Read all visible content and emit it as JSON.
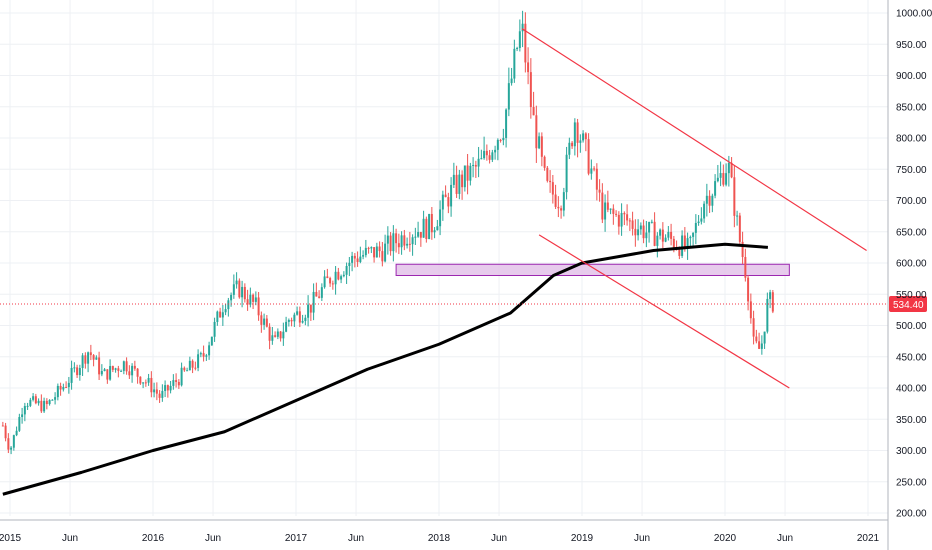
{
  "chart_data": {
    "type": "candlestick",
    "title": "",
    "xlabel": "",
    "ylabel": "",
    "ylim": [
      190,
      1010
    ],
    "y_ticks": [
      "200.00",
      "250.00",
      "300.00",
      "350.00",
      "400.00",
      "450.00",
      "500.00",
      "550.00",
      "600.00",
      "650.00",
      "700.00",
      "750.00",
      "800.00",
      "850.00",
      "900.00",
      "950.00",
      "1000.00"
    ],
    "x_ticks": [
      {
        "label": "2015",
        "x": 2015.0
      },
      {
        "label": "Jun",
        "x": 2015.42
      },
      {
        "label": "2016",
        "x": 2016.0
      },
      {
        "label": "Jun",
        "x": 2016.42
      },
      {
        "label": "2017",
        "x": 2017.0
      },
      {
        "label": "Jun",
        "x": 2017.42
      },
      {
        "label": "2018",
        "x": 2018.0
      },
      {
        "label": "Jun",
        "x": 2018.42
      },
      {
        "label": "2019",
        "x": 2019.0
      },
      {
        "label": "Jun",
        "x": 2019.42
      },
      {
        "label": "2020",
        "x": 2020.0
      },
      {
        "label": "Jun",
        "x": 2020.42
      },
      {
        "label": "2021",
        "x": 2021.0
      }
    ],
    "price_path": [
      [
        2014.95,
        340
      ],
      [
        2015.0,
        300
      ],
      [
        2015.1,
        380
      ],
      [
        2015.25,
        370
      ],
      [
        2015.4,
        410
      ],
      [
        2015.55,
        460
      ],
      [
        2015.65,
        420
      ],
      [
        2015.8,
        440
      ],
      [
        2016.0,
        400
      ],
      [
        2016.05,
        385
      ],
      [
        2016.2,
        420
      ],
      [
        2016.35,
        450
      ],
      [
        2016.5,
        540
      ],
      [
        2016.6,
        560
      ],
      [
        2016.72,
        530
      ],
      [
        2016.85,
        470
      ],
      [
        2016.95,
        510
      ],
      [
        2017.1,
        530
      ],
      [
        2017.25,
        580
      ],
      [
        2017.42,
        610
      ],
      [
        2017.6,
        620
      ],
      [
        2017.8,
        650
      ],
      [
        2017.95,
        660
      ],
      [
        2018.1,
        720
      ],
      [
        2018.3,
        760
      ],
      [
        2018.45,
        820
      ],
      [
        2018.55,
        950
      ],
      [
        2018.58,
        975
      ],
      [
        2018.65,
        840
      ],
      [
        2018.75,
        720
      ],
      [
        2018.85,
        700
      ],
      [
        2018.95,
        830
      ],
      [
        2019.05,
        760
      ],
      [
        2019.15,
        680
      ],
      [
        2019.3,
        670
      ],
      [
        2019.45,
        650
      ],
      [
        2019.6,
        640
      ],
      [
        2019.75,
        620
      ],
      [
        2019.85,
        700
      ],
      [
        2019.95,
        730
      ],
      [
        2020.02,
        760
      ],
      [
        2020.1,
        640
      ],
      [
        2020.15,
        580
      ],
      [
        2020.2,
        470
      ],
      [
        2020.25,
        460
      ],
      [
        2020.3,
        540
      ],
      [
        2020.35,
        534.4
      ]
    ],
    "series": [
      {
        "values_ref": "price_path",
        "color_up": "#26a69a",
        "color_down": "#ef5350"
      },
      {
        "name": "",
        "type": "line",
        "color": "#000000",
        "points": [
          [
            2014.95,
            230
          ],
          [
            2015.5,
            265
          ],
          [
            2016.0,
            300
          ],
          [
            2016.5,
            330
          ],
          [
            2017.0,
            380
          ],
          [
            2017.5,
            430
          ],
          [
            2018.0,
            470
          ],
          [
            2018.5,
            520
          ],
          [
            2018.8,
            580
          ],
          [
            2019.0,
            600
          ],
          [
            2019.5,
            620
          ],
          [
            2020.0,
            630
          ],
          [
            2020.3,
            625
          ]
        ]
      }
    ],
    "annotations": [
      {
        "type": "trendline",
        "color": "#f23645",
        "from": [
          2018.58,
          975
        ],
        "to": [
          2020.99,
          620
        ]
      },
      {
        "type": "trendline",
        "color": "#f23645",
        "from": [
          2018.7,
          645
        ],
        "to": [
          2020.45,
          400
        ]
      },
      {
        "type": "zone",
        "color": "#e1bee7",
        "x": [
          2017.7,
          2020.45
        ],
        "y": [
          580,
          598
        ]
      },
      {
        "type": "price_line",
        "color": "#f23645",
        "value": 534.4
      }
    ],
    "last_price_label": "534.40",
    "last_price_color": "#f23645",
    "grid": true,
    "legend": "none"
  }
}
